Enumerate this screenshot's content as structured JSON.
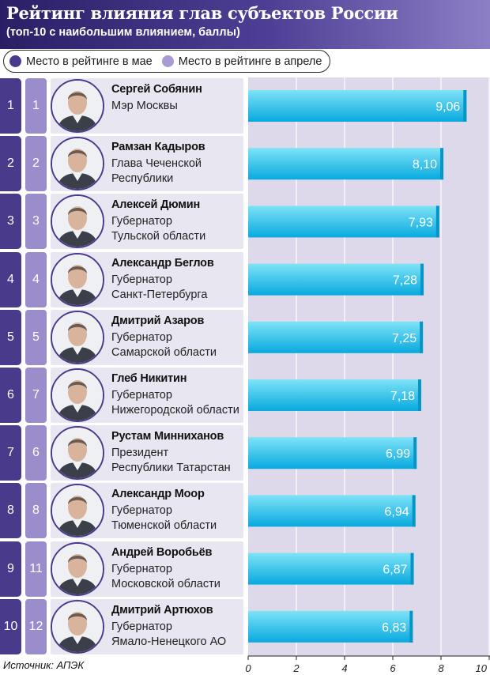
{
  "title": "Рейтинг влияния глав субъектов России",
  "subtitle": "(топ-10 с наибольшим влиянием, баллы)",
  "legend": {
    "may": "Место в рейтинге в мае",
    "april": "Место в рейтинге в апреле"
  },
  "source": "Источник: АПЭК",
  "colors": {
    "header": "#3b2e7e",
    "may_rank": "#4a3a8c",
    "april_rank": "#9b8dcb",
    "card": "#e8e6f1",
    "plot_bg": "#ddd9ea",
    "bar_top": "#7ee3f7",
    "bar_bottom": "#08a9df"
  },
  "rows": [
    {
      "rank_may": "1",
      "rank_april": "1",
      "name": "Сергей Собянин",
      "position_line1": "Мэр Москвы",
      "position_line2": "",
      "value_label": "9,06",
      "avatar_icon": "person-photo"
    },
    {
      "rank_may": "2",
      "rank_april": "2",
      "name": "Рамзан Кадыров",
      "position_line1": "Глава Чеченской",
      "position_line2": "Республики",
      "value_label": "8,10",
      "avatar_icon": "person-photo"
    },
    {
      "rank_may": "3",
      "rank_april": "3",
      "name": "Алексей Дюмин",
      "position_line1": "Губернатор",
      "position_line2": "Тульской области",
      "value_label": "7,93",
      "avatar_icon": "person-photo"
    },
    {
      "rank_may": "4",
      "rank_april": "4",
      "name": "Александр Беглов",
      "position_line1": "Губернатор",
      "position_line2": "Санкт-Петербурга",
      "value_label": "7,28",
      "avatar_icon": "person-photo"
    },
    {
      "rank_may": "5",
      "rank_april": "5",
      "name": "Дмитрий Азаров",
      "position_line1": "Губернатор",
      "position_line2": "Самарской области",
      "value_label": "7,25",
      "avatar_icon": "person-photo"
    },
    {
      "rank_may": "6",
      "rank_april": "7",
      "name": "Глеб Никитин",
      "position_line1": "Губернатор",
      "position_line2": "Нижегородской области",
      "value_label": "7,18",
      "avatar_icon": "person-photo"
    },
    {
      "rank_may": "7",
      "rank_april": "6",
      "name": "Рустам Минниханов",
      "position_line1": "Президент",
      "position_line2": "Республики Татарстан",
      "value_label": "6,99",
      "avatar_icon": "person-photo"
    },
    {
      "rank_may": "8",
      "rank_april": "8",
      "name": "Александр Моор",
      "position_line1": "Губернатор",
      "position_line2": "Тюменской области",
      "value_label": "6,94",
      "avatar_icon": "person-photo"
    },
    {
      "rank_may": "9",
      "rank_april": "11",
      "name": "Андрей Воробьёв",
      "position_line1": "Губернатор",
      "position_line2": "Московской области",
      "value_label": "6,87",
      "avatar_icon": "person-photo"
    },
    {
      "rank_may": "10",
      "rank_april": "12",
      "name": "Дмитрий Артюхов",
      "position_line1": "Губернатор",
      "position_line2": "Ямало-Ненецкого АО",
      "value_label": "6,83",
      "avatar_icon": "person-photo"
    }
  ],
  "chart_data": {
    "type": "bar",
    "orientation": "horizontal",
    "title": "Рейтинг влияния глав субъектов России",
    "subtitle": "(топ-10 с наибольшим влиянием, баллы)",
    "categories": [
      "Сергей Собянин",
      "Рамзан Кадыров",
      "Алексей Дюмин",
      "Александр Беглов",
      "Дмитрий Азаров",
      "Глеб Никитин",
      "Рустам Минниханов",
      "Александр Моор",
      "Андрей Воробьёв",
      "Дмитрий Артюхов"
    ],
    "values": [
      9.06,
      8.1,
      7.93,
      7.28,
      7.25,
      7.18,
      6.99,
      6.94,
      6.87,
      6.83
    ],
    "data_labels": [
      "9,06",
      "8,10",
      "7,93",
      "7,28",
      "7,25",
      "7,18",
      "6,99",
      "6,94",
      "6,87",
      "6,83"
    ],
    "xlim": [
      0,
      10
    ],
    "xticks": [
      0,
      2,
      4,
      6,
      8,
      10
    ],
    "grid": true
  }
}
